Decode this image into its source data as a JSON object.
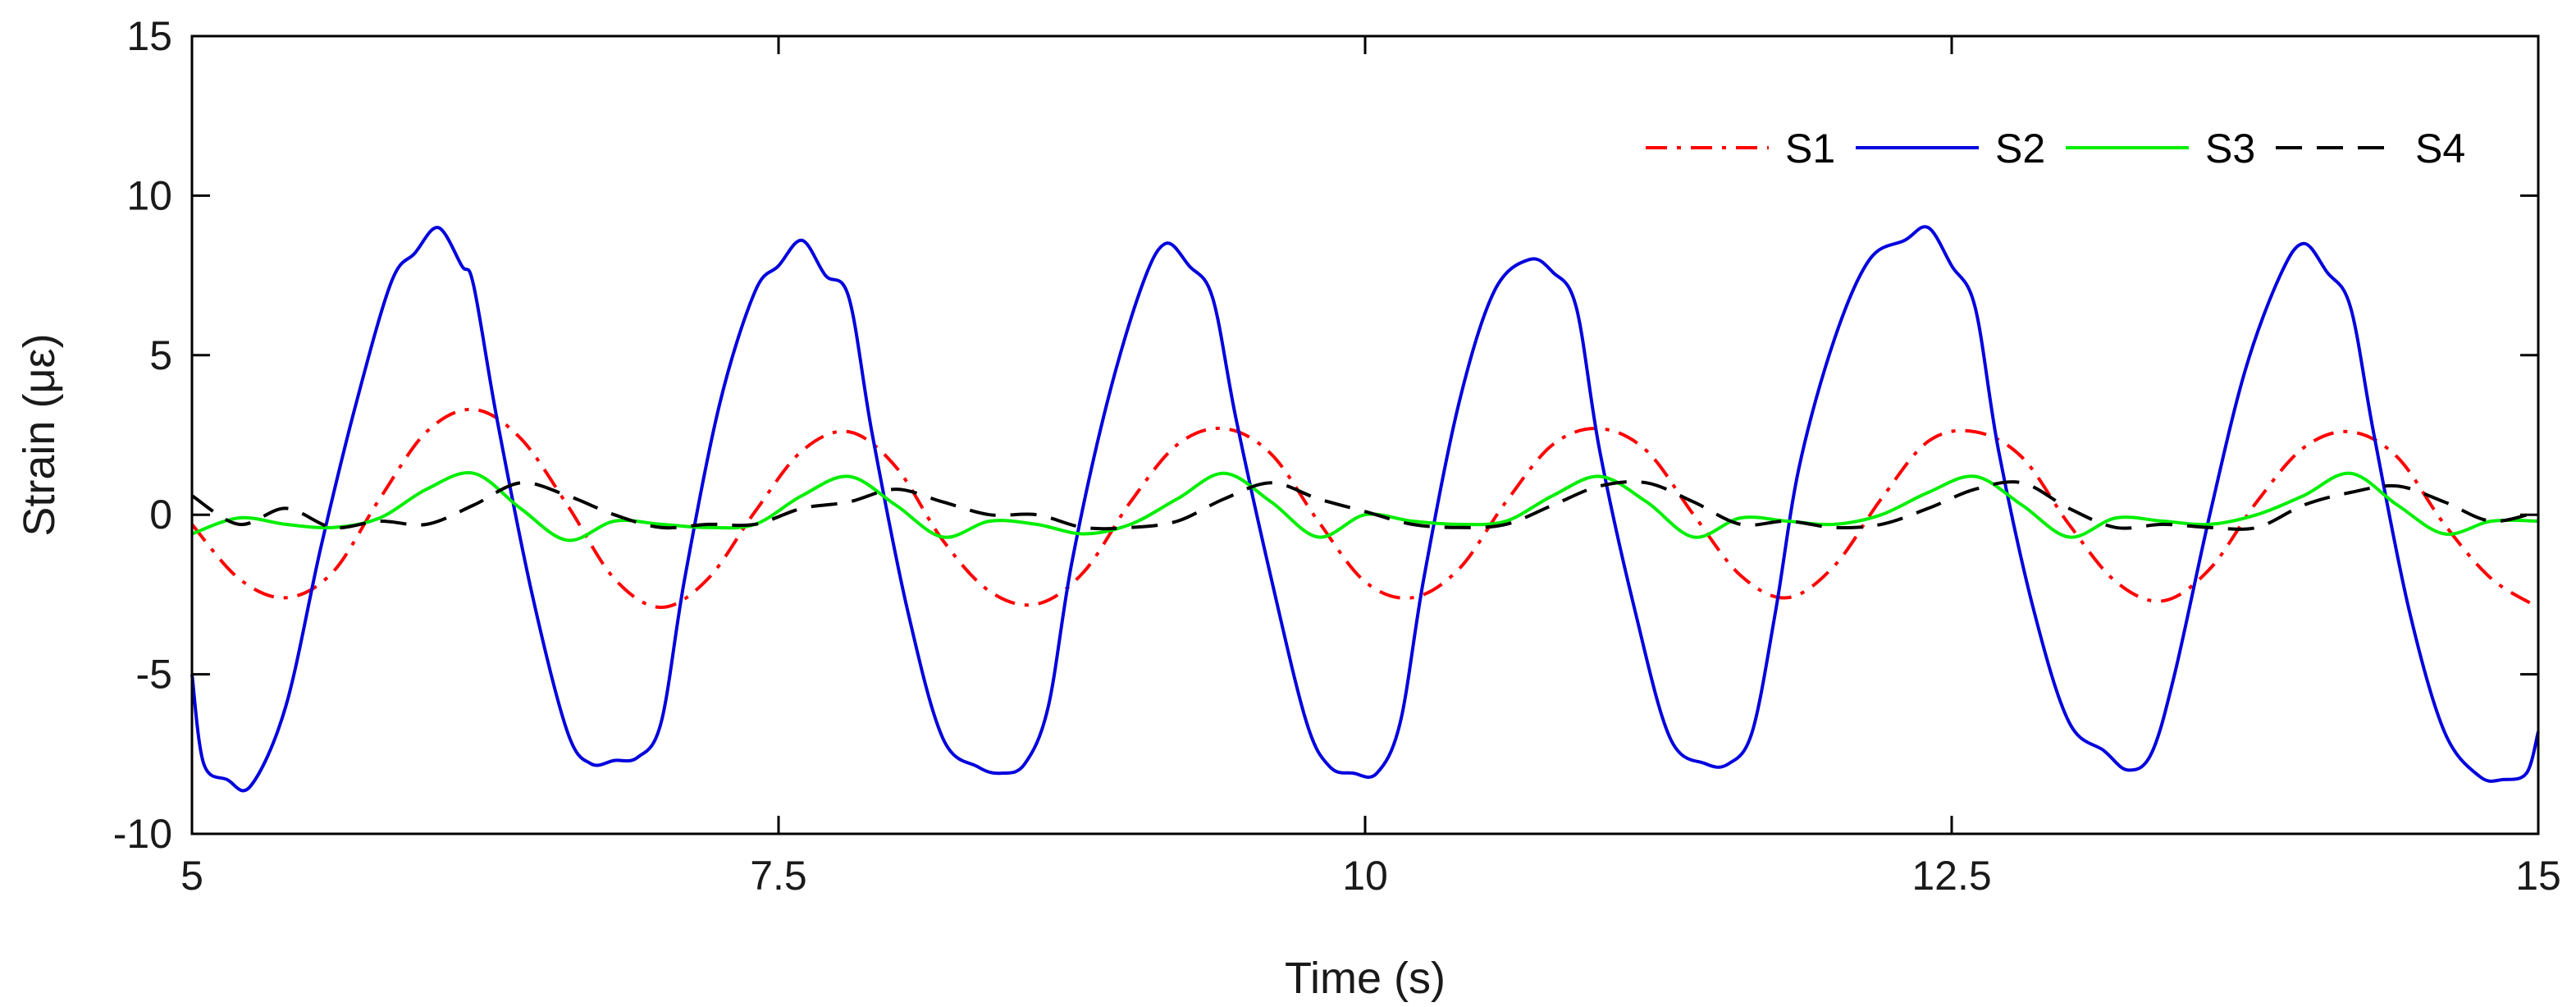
{
  "chart_data": {
    "type": "line",
    "title": "",
    "xlabel": "Time (s)",
    "ylabel": "Strain (με)",
    "xlim": [
      5,
      15
    ],
    "ylim": [
      -10,
      15
    ],
    "xticks": [
      5,
      7.5,
      10,
      12.5,
      15
    ],
    "xtick_labels": [
      "5",
      "7.5",
      "10",
      "12.5",
      "15"
    ],
    "yticks": [
      -10,
      -5,
      0,
      5,
      10,
      15
    ],
    "ytick_labels": [
      "-10",
      "-5",
      "0",
      "5",
      "10",
      "15"
    ],
    "grid": false,
    "legend_position": "top-right",
    "series": [
      {
        "name": "S1",
        "color": "#ff0000",
        "dash": "dash-dot",
        "x": [
          5.0,
          5.2,
          5.4,
          5.6,
          5.8,
          6.0,
          6.2,
          6.4,
          6.6,
          6.8,
          7.0,
          7.2,
          7.4,
          7.6,
          7.8,
          8.0,
          8.2,
          8.4,
          8.6,
          8.8,
          9.0,
          9.2,
          9.4,
          9.6,
          9.8,
          10.0,
          10.2,
          10.4,
          10.6,
          10.8,
          11.0,
          11.2,
          11.4,
          11.6,
          11.8,
          12.0,
          12.2,
          12.4,
          12.6,
          12.8,
          13.0,
          13.2,
          13.4,
          13.6,
          13.8,
          14.0,
          14.2,
          14.4,
          14.6,
          14.8,
          15.0
        ],
        "y": [
          -0.3,
          -2.0,
          -2.6,
          -1.8,
          0.5,
          2.6,
          3.3,
          2.4,
          0.3,
          -2.0,
          -2.9,
          -2.0,
          0.1,
          2.0,
          2.6,
          1.5,
          -0.8,
          -2.4,
          -2.8,
          -1.8,
          0.4,
          2.2,
          2.7,
          1.9,
          -0.2,
          -2.1,
          -2.6,
          -1.7,
          0.4,
          2.2,
          2.7,
          2.0,
          0.0,
          -1.9,
          -2.6,
          -1.6,
          0.5,
          2.3,
          2.6,
          1.8,
          -0.3,
          -2.1,
          -2.7,
          -1.7,
          0.4,
          2.1,
          2.6,
          1.8,
          -0.3,
          -2.0,
          -2.9
        ]
      },
      {
        "name": "S2",
        "color": "#0000dd",
        "dash": "solid",
        "x": [
          5.0,
          5.05,
          5.15,
          5.25,
          5.4,
          5.55,
          5.7,
          5.85,
          5.95,
          6.05,
          6.15,
          6.2,
          6.3,
          6.45,
          6.6,
          6.7,
          6.8,
          6.9,
          7.0,
          7.1,
          7.25,
          7.4,
          7.5,
          7.6,
          7.7,
          7.8,
          7.9,
          8.05,
          8.2,
          8.35,
          8.45,
          8.55,
          8.65,
          8.75,
          8.9,
          9.05,
          9.15,
          9.25,
          9.35,
          9.45,
          9.6,
          9.75,
          9.85,
          9.95,
          10.05,
          10.15,
          10.25,
          10.4,
          10.55,
          10.7,
          10.8,
          10.9,
          11.0,
          11.15,
          11.3,
          11.45,
          11.55,
          11.65,
          11.75,
          11.85,
          12.0,
          12.15,
          12.3,
          12.4,
          12.5,
          12.6,
          12.7,
          12.85,
          13.0,
          13.15,
          13.25,
          13.35,
          13.45,
          13.6,
          13.75,
          13.9,
          14.0,
          14.1,
          14.2,
          14.3,
          14.45,
          14.6,
          14.75,
          14.85,
          14.95,
          15.0
        ],
        "y": [
          -5.0,
          -7.8,
          -8.3,
          -8.5,
          -6.0,
          -1.0,
          3.5,
          7.3,
          8.2,
          9.0,
          7.8,
          7.2,
          3.0,
          -2.5,
          -6.8,
          -7.8,
          -7.7,
          -7.6,
          -6.5,
          -2.0,
          3.5,
          7.0,
          7.8,
          8.6,
          7.5,
          6.8,
          2.5,
          -3.0,
          -7.0,
          -7.9,
          -8.1,
          -7.8,
          -6.0,
          -1.5,
          3.5,
          7.2,
          8.5,
          7.8,
          6.8,
          3.0,
          -2.0,
          -6.5,
          -7.9,
          -8.1,
          -8.1,
          -6.5,
          -2.0,
          3.5,
          7.0,
          8.0,
          7.6,
          6.5,
          2.0,
          -3.0,
          -7.0,
          -7.8,
          -7.8,
          -6.8,
          -3.0,
          1.5,
          5.5,
          8.0,
          8.6,
          9.0,
          7.8,
          6.5,
          2.0,
          -3.0,
          -6.5,
          -7.4,
          -8.0,
          -7.5,
          -5.0,
          0.0,
          4.5,
          7.5,
          8.5,
          7.6,
          6.5,
          2.5,
          -3.0,
          -6.8,
          -8.2,
          -8.3,
          -8.1,
          -6.8
        ]
      },
      {
        "name": "S3",
        "color": "#00ee00",
        "dash": "solid",
        "x": [
          5.0,
          5.2,
          5.4,
          5.6,
          5.8,
          6.0,
          6.2,
          6.4,
          6.6,
          6.8,
          7.0,
          7.2,
          7.4,
          7.6,
          7.8,
          8.0,
          8.2,
          8.4,
          8.6,
          8.8,
          9.0,
          9.2,
          9.4,
          9.6,
          9.8,
          10.0,
          10.2,
          10.4,
          10.6,
          10.8,
          11.0,
          11.2,
          11.4,
          11.6,
          11.8,
          12.0,
          12.2,
          12.4,
          12.6,
          12.8,
          13.0,
          13.2,
          13.4,
          13.6,
          13.8,
          14.0,
          14.2,
          14.4,
          14.6,
          14.8,
          15.0
        ],
        "y": [
          -0.6,
          -0.1,
          -0.3,
          -0.4,
          -0.1,
          0.8,
          1.3,
          0.2,
          -0.8,
          -0.2,
          -0.3,
          -0.4,
          -0.3,
          0.6,
          1.2,
          0.3,
          -0.7,
          -0.2,
          -0.3,
          -0.6,
          -0.3,
          0.5,
          1.3,
          0.4,
          -0.7,
          0.0,
          -0.2,
          -0.3,
          -0.2,
          0.6,
          1.2,
          0.4,
          -0.7,
          -0.1,
          -0.2,
          -0.3,
          0.0,
          0.7,
          1.2,
          0.3,
          -0.7,
          -0.1,
          -0.2,
          -0.3,
          0.0,
          0.6,
          1.3,
          0.3,
          -0.6,
          -0.2,
          -0.2
        ]
      },
      {
        "name": "S4",
        "color": "#000000",
        "dash": "dashed",
        "x": [
          5.0,
          5.2,
          5.4,
          5.6,
          5.8,
          6.0,
          6.2,
          6.4,
          6.6,
          6.8,
          7.0,
          7.2,
          7.4,
          7.6,
          7.8,
          8.0,
          8.2,
          8.4,
          8.6,
          8.8,
          9.0,
          9.2,
          9.4,
          9.6,
          9.8,
          10.0,
          10.2,
          10.4,
          10.6,
          10.8,
          11.0,
          11.2,
          11.4,
          11.6,
          11.8,
          12.0,
          12.2,
          12.4,
          12.6,
          12.8,
          13.0,
          13.2,
          13.4,
          13.6,
          13.8,
          14.0,
          14.2,
          14.4,
          14.6,
          14.8,
          15.0
        ],
        "y": [
          0.6,
          -0.3,
          0.2,
          -0.4,
          -0.2,
          -0.3,
          0.3,
          1.0,
          0.6,
          0.0,
          -0.4,
          -0.3,
          -0.3,
          0.2,
          0.4,
          0.8,
          0.4,
          0.0,
          0.0,
          -0.4,
          -0.4,
          -0.2,
          0.5,
          1.0,
          0.5,
          0.1,
          -0.3,
          -0.4,
          -0.3,
          0.3,
          0.9,
          1.0,
          0.4,
          -0.3,
          -0.2,
          -0.4,
          -0.3,
          0.2,
          0.8,
          1.0,
          0.2,
          -0.4,
          -0.3,
          -0.4,
          -0.4,
          0.3,
          0.7,
          0.9,
          0.4,
          -0.2,
          0.1
        ]
      }
    ]
  }
}
